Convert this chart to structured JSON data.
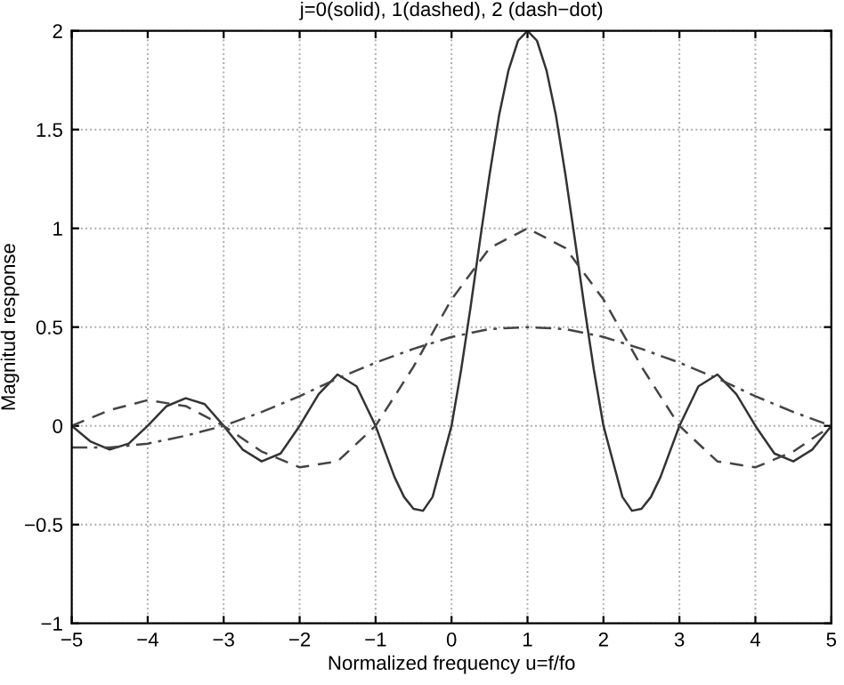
{
  "chart_data": {
    "type": "line",
    "title": "j=0(solid), 1(dashed), 2 (dash−dot)",
    "xlabel": "Normalized frequency u=f/fo",
    "ylabel": "Magnitud response",
    "xlim": [
      -5,
      5
    ],
    "ylim": [
      -1,
      2
    ],
    "xticks": [
      -5,
      -4,
      -3,
      -2,
      -1,
      0,
      1,
      2,
      3,
      4,
      5
    ],
    "yticks": [
      -1,
      -0.5,
      0,
      0.5,
      1,
      1.5,
      2
    ],
    "grid": true,
    "legend": false,
    "series": [
      {
        "color": "#333333",
        "line_style": "solid",
        "x": [
          -5,
          -4.75,
          -4.5,
          -4.25,
          -4,
          -3.75,
          -3.5,
          -3.25,
          -3,
          -2.75,
          -2.5,
          -2.25,
          -2,
          -1.75,
          -1.5,
          -1.25,
          -1,
          -0.75,
          -0.625,
          -0.5,
          -0.375,
          -0.25,
          0,
          0.125,
          0.25,
          0.375,
          0.5,
          0.625,
          0.75,
          0.875,
          1,
          1.125,
          1.25,
          1.375,
          1.5,
          1.625,
          1.75,
          1.875,
          2,
          2.25,
          2.375,
          2.5,
          2.625,
          2.75,
          3,
          3.25,
          3.5,
          3.75,
          4,
          4.25,
          4.5,
          4.75,
          5
        ],
        "values": [
          0,
          -0.08,
          -0.12,
          -0.09,
          0,
          0.1,
          0.14,
          0.11,
          0,
          -0.12,
          -0.18,
          -0.14,
          0,
          0.16,
          0.26,
          0.2,
          0,
          -0.26,
          -0.36,
          -0.42,
          -0.43,
          -0.36,
          0,
          0.28,
          0.6,
          0.94,
          1.27,
          1.57,
          1.8,
          1.95,
          2,
          1.95,
          1.8,
          1.57,
          1.27,
          0.94,
          0.6,
          0.28,
          0,
          -0.36,
          -0.43,
          -0.42,
          -0.36,
          -0.26,
          0,
          0.2,
          0.26,
          0.16,
          0,
          -0.14,
          -0.18,
          -0.12,
          0
        ]
      },
      {
        "color": "#444444",
        "line_style": "dashed",
        "x": [
          -5,
          -4.5,
          -4,
          -3.5,
          -3,
          -2.5,
          -2,
          -1.5,
          -1,
          -0.5,
          0,
          0.5,
          1,
          1.5,
          2,
          2.5,
          3,
          3.5,
          4,
          4.5,
          5
        ],
        "values": [
          0,
          0.08,
          0.13,
          0.1,
          0,
          -0.13,
          -0.21,
          -0.18,
          0,
          0.3,
          0.64,
          0.9,
          1,
          0.9,
          0.64,
          0.3,
          0,
          -0.18,
          -0.21,
          -0.13,
          0
        ]
      },
      {
        "color": "#444444",
        "line_style": "dashdot",
        "x": [
          -5,
          -4.5,
          -4,
          -3.5,
          -3,
          -2.5,
          -2,
          -1.5,
          -1,
          -0.5,
          0,
          0.5,
          1,
          1.5,
          2,
          2.5,
          3,
          3.5,
          4,
          4.5,
          5
        ],
        "values": [
          -0.11,
          -0.11,
          -0.09,
          -0.05,
          0,
          0.07,
          0.15,
          0.24,
          0.32,
          0.39,
          0.45,
          0.49,
          0.5,
          0.49,
          0.45,
          0.39,
          0.32,
          0.24,
          0.15,
          0.07,
          0
        ]
      }
    ]
  }
}
